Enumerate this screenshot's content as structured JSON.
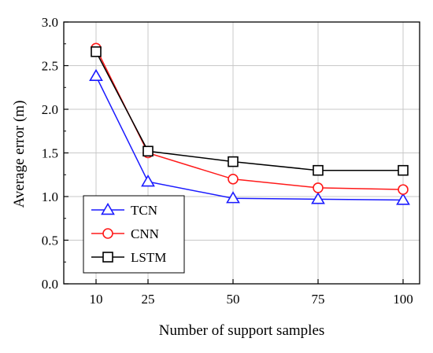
{
  "chart_data": {
    "type": "line",
    "xlabel": "Number of support samples",
    "ylabel": "Average error (m)",
    "x": [
      10,
      25,
      50,
      75,
      100
    ],
    "x_tick_labels": [
      "10",
      "25",
      "50",
      "75",
      "100"
    ],
    "ylim": [
      0.0,
      3.0
    ],
    "y_ticks": [
      "0.0",
      "0.5",
      "1.0",
      "1.5",
      "2.0",
      "2.5",
      "3.0"
    ],
    "grid": true,
    "legend_position": "bottom-left",
    "series": [
      {
        "name": "TCN",
        "values": [
          2.38,
          1.17,
          0.98,
          0.97,
          0.96
        ],
        "color": "#1a1aff",
        "marker": "triangle"
      },
      {
        "name": "CNN",
        "values": [
          2.7,
          1.5,
          1.2,
          1.1,
          1.08
        ],
        "color": "#ff1a1a",
        "marker": "circle"
      },
      {
        "name": "LSTM",
        "values": [
          2.66,
          1.52,
          1.4,
          1.3,
          1.3
        ],
        "color": "#000000",
        "marker": "square"
      }
    ]
  }
}
